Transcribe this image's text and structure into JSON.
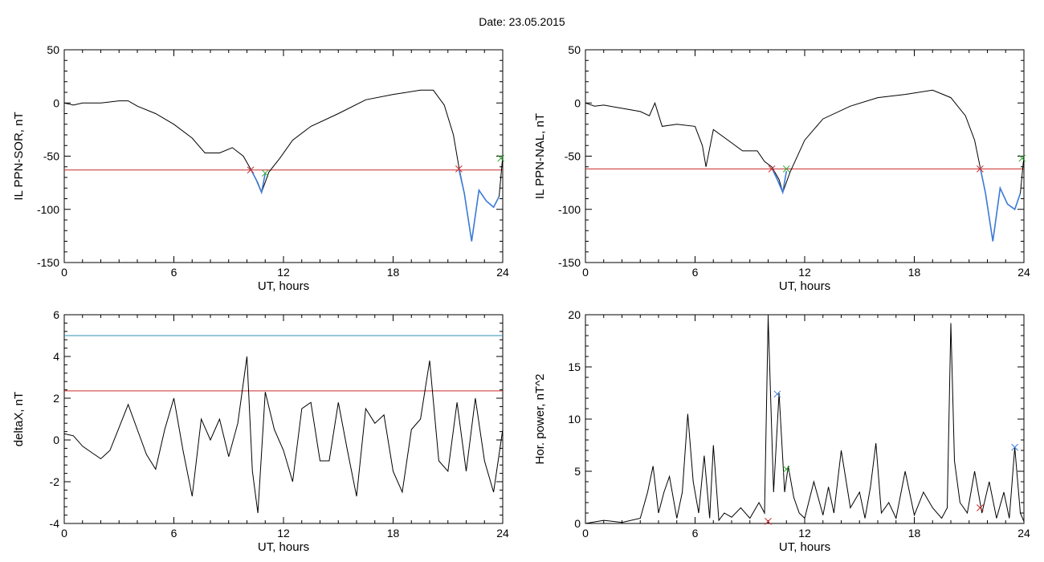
{
  "title": "Date:  23.05.2015",
  "chart_data": [
    {
      "id": "p1",
      "type": "line",
      "xlabel": "UT, hours",
      "ylabel": "IL PPN-SOR, nT",
      "xlim": [
        0,
        24
      ],
      "ylim": [
        -150,
        50
      ],
      "xticks": [
        0,
        6,
        12,
        18,
        24
      ],
      "yticks": [
        -150,
        -100,
        -50,
        0,
        50
      ],
      "series": [
        {
          "color": "#000000",
          "x": [
            0,
            0.5,
            1,
            2,
            3,
            3.5,
            4,
            5,
            6,
            7,
            7.7,
            8.5,
            9.2,
            9.8,
            10.2,
            10.6,
            10.8,
            11.2,
            11.8,
            12.5,
            13.5,
            15,
            16.5,
            18,
            19.5,
            20.2,
            20.8,
            21.3,
            21.6,
            21.9,
            22.3,
            22.7,
            23.1,
            23.5,
            23.8,
            24
          ],
          "y": [
            0,
            -2,
            0,
            0,
            2,
            2,
            -3,
            -10,
            -20,
            -33,
            -47,
            -47,
            -42,
            -50,
            -62,
            -75,
            -84,
            -65,
            -52,
            -35,
            -22,
            -10,
            3,
            8,
            12,
            12,
            -2,
            -30,
            -60,
            -85,
            -130,
            -82,
            -92,
            -98,
            -88,
            -50
          ]
        }
      ],
      "hlines": [
        {
          "y": -63,
          "color": "#cc2a2a"
        }
      ],
      "segments": [
        {
          "color": "#3b7bd8",
          "x": [
            10.2,
            10.5,
            10.8,
            11.0
          ],
          "y": [
            -62,
            -72,
            -84,
            -66
          ]
        },
        {
          "color": "#3b7bd8",
          "x": [
            21.6,
            21.9,
            22.3,
            22.7,
            23.1,
            23.5,
            23.8
          ],
          "y": [
            -62,
            -85,
            -130,
            -82,
            -92,
            -98,
            -88
          ]
        }
      ],
      "markers": [
        {
          "x": 10.2,
          "y": -63,
          "color": "#cc2a2a"
        },
        {
          "x": 11.0,
          "y": -66,
          "color": "#33aa33"
        },
        {
          "x": 21.6,
          "y": -62,
          "color": "#cc2a2a"
        },
        {
          "x": 23.9,
          "y": -52,
          "color": "#33aa33"
        }
      ]
    },
    {
      "id": "p2",
      "type": "line",
      "xlabel": "UT, hours",
      "ylabel": "IL PPN-NAL, nT",
      "xlim": [
        0,
        24
      ],
      "ylim": [
        -150,
        50
      ],
      "xticks": [
        0,
        6,
        12,
        18,
        24
      ],
      "yticks": [
        -150,
        -100,
        -50,
        0,
        50
      ],
      "series": [
        {
          "color": "#000000",
          "x": [
            0,
            0.5,
            1,
            2,
            3,
            3.5,
            3.8,
            4.2,
            5,
            6,
            6.4,
            6.6,
            7.0,
            7.8,
            8.6,
            9.4,
            9.8,
            10.2,
            10.6,
            10.8,
            11.2,
            12,
            13,
            14.5,
            16,
            17.5,
            19,
            20,
            20.8,
            21.3,
            21.6,
            21.9,
            22.3,
            22.7,
            23.1,
            23.5,
            23.8,
            24
          ],
          "y": [
            0,
            -3,
            -2,
            -5,
            -8,
            -12,
            0,
            -22,
            -20,
            -22,
            -40,
            -60,
            -25,
            -35,
            -45,
            -45,
            -55,
            -60,
            -72,
            -84,
            -65,
            -35,
            -15,
            -3,
            5,
            8,
            12,
            5,
            -12,
            -35,
            -60,
            -85,
            -130,
            -80,
            -95,
            -100,
            -85,
            -50
          ]
        }
      ],
      "hlines": [
        {
          "y": -62,
          "color": "#cc2a2a"
        }
      ],
      "segments": [
        {
          "color": "#3b7bd8",
          "x": [
            10.2,
            10.5,
            10.8,
            11.0
          ],
          "y": [
            -61,
            -72,
            -84,
            -64
          ]
        },
        {
          "color": "#3b7bd8",
          "x": [
            21.6,
            21.9,
            22.3,
            22.7,
            23.1,
            23.5,
            23.8
          ],
          "y": [
            -60,
            -85,
            -130,
            -80,
            -95,
            -100,
            -85
          ]
        }
      ],
      "markers": [
        {
          "x": 10.2,
          "y": -62,
          "color": "#cc2a2a"
        },
        {
          "x": 11.0,
          "y": -62,
          "color": "#33aa33"
        },
        {
          "x": 21.6,
          "y": -62,
          "color": "#cc2a2a"
        },
        {
          "x": 23.9,
          "y": -52,
          "color": "#33aa33"
        }
      ]
    },
    {
      "id": "p3",
      "type": "line",
      "xlabel": "UT, hours",
      "ylabel": "deltaX, nT",
      "xlim": [
        0,
        24
      ],
      "ylim": [
        -4,
        6
      ],
      "xticks": [
        0,
        6,
        12,
        18,
        24
      ],
      "yticks": [
        -4,
        -2,
        0,
        2,
        4,
        6
      ],
      "series": [
        {
          "color": "#000000",
          "x": [
            0,
            0.5,
            1,
            1.5,
            2,
            2.5,
            3,
            3.5,
            4,
            4.5,
            5,
            5.5,
            6,
            6.5,
            7,
            7.5,
            8,
            8.5,
            9,
            9.5,
            10,
            10.3,
            10.6,
            11,
            11.5,
            12,
            12.5,
            13,
            13.5,
            14,
            14.5,
            15,
            15.5,
            16,
            16.5,
            17,
            17.5,
            18,
            18.5,
            19,
            19.5,
            20,
            20.5,
            21,
            21.5,
            22,
            22.5,
            23,
            23.5,
            24
          ],
          "y": [
            0.3,
            0.2,
            -0.3,
            -0.6,
            -0.9,
            -0.5,
            0.6,
            1.7,
            0.5,
            -0.7,
            -1.4,
            0.5,
            2.0,
            -0.5,
            -2.7,
            1.0,
            0.0,
            1.0,
            -0.8,
            0.8,
            4.0,
            -1.5,
            -3.5,
            2.3,
            0.5,
            -0.5,
            -2.0,
            1.5,
            1.8,
            -1.0,
            -1.0,
            1.8,
            -0.5,
            -2.7,
            1.5,
            0.8,
            1.2,
            -1.5,
            -2.5,
            0.5,
            1.0,
            3.8,
            -1.0,
            -1.5,
            1.8,
            -1.5,
            2.0,
            -1.0,
            -2.5,
            0.5
          ]
        }
      ],
      "hlines": [
        {
          "y": 5.0,
          "color": "#2f8fb0"
        },
        {
          "y": 2.35,
          "color": "#cc2a2a"
        }
      ],
      "segments": [],
      "markers": []
    },
    {
      "id": "p4",
      "type": "line",
      "xlabel": "UT, hours",
      "ylabel": "Hor. power, nT^2",
      "xlim": [
        0,
        24
      ],
      "ylim": [
        0,
        20
      ],
      "xticks": [
        0,
        6,
        12,
        18,
        24
      ],
      "yticks": [
        0,
        5,
        10,
        15,
        20
      ],
      "series": [
        {
          "color": "#000000",
          "x": [
            0,
            1,
            2,
            3,
            3.4,
            3.7,
            4.0,
            4.3,
            4.6,
            5.0,
            5.3,
            5.6,
            5.9,
            6.2,
            6.5,
            6.8,
            7.0,
            7.3,
            7.6,
            8,
            8.5,
            9,
            9.5,
            9.8,
            10.0,
            10.3,
            10.6,
            10.9,
            11.1,
            11.4,
            11.7,
            12,
            12.5,
            13,
            13.3,
            13.6,
            14,
            14.5,
            15,
            15.3,
            15.6,
            15.9,
            16.2,
            16.6,
            17,
            17.5,
            18,
            18.5,
            19,
            19.5,
            19.8,
            20.0,
            20.2,
            20.5,
            20.9,
            21.3,
            21.7,
            22.1,
            22.5,
            22.9,
            23.2,
            23.5,
            23.8,
            24
          ],
          "y": [
            0,
            0.3,
            0.1,
            0.5,
            3.0,
            5.5,
            1.0,
            3.0,
            4.5,
            0.5,
            3.0,
            10.5,
            4.0,
            1.0,
            6.5,
            0.5,
            7.5,
            0.3,
            1.0,
            0.6,
            1.5,
            0.5,
            2.0,
            1.0,
            19.8,
            3.0,
            12.5,
            3.0,
            5.5,
            2.5,
            1.0,
            0.5,
            4.0,
            0.8,
            3.5,
            1.0,
            7.0,
            1.5,
            3.0,
            0.5,
            3.5,
            7.7,
            1.0,
            2.0,
            0.5,
            5.0,
            0.8,
            3.0,
            1.5,
            0.5,
            1.5,
            19.2,
            6.0,
            2.0,
            1.0,
            5.0,
            1.0,
            4.0,
            0.5,
            3.0,
            0.5,
            7.3,
            1.0,
            0.2
          ]
        }
      ],
      "hlines": [],
      "segments": [],
      "markers": [
        {
          "x": 10.0,
          "y": 0.2,
          "color": "#cc2a2a"
        },
        {
          "x": 10.5,
          "y": 12.4,
          "color": "#3b7bd8"
        },
        {
          "x": 11.0,
          "y": 5.2,
          "color": "#33aa33"
        },
        {
          "x": 21.6,
          "y": 1.5,
          "color": "#cc2a2a"
        },
        {
          "x": 23.5,
          "y": 7.3,
          "color": "#3b7bd8"
        }
      ]
    }
  ]
}
